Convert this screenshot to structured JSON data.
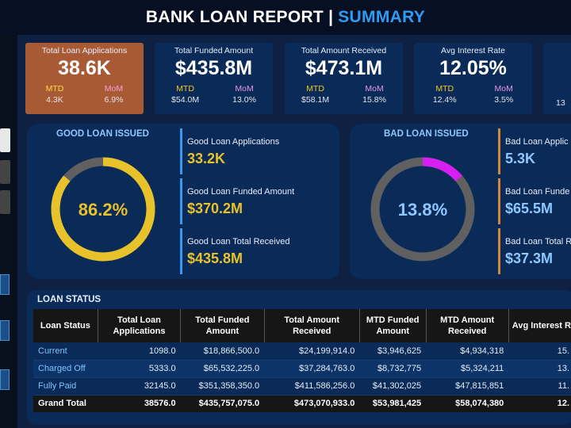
{
  "header": {
    "title_part1": "BANK LOAN REPORT",
    "separator": "|",
    "title_part2": "SUMMARY"
  },
  "kpis": [
    {
      "title": "Total Loan Applications",
      "value": "38.6K",
      "mtd_label": "MTD",
      "mtd_value": "4.3K",
      "mom_label": "MoM",
      "mom_value": "6.9%"
    },
    {
      "title": "Total Funded Amount",
      "value": "$435.8M",
      "mtd_label": "MTD",
      "mtd_value": "$54.0M",
      "mom_label": "MoM",
      "mom_value": "13.0%"
    },
    {
      "title": "Total Amount Received",
      "value": "$473.1M",
      "mtd_label": "MTD",
      "mtd_value": "$58.1M",
      "mom_label": "MoM",
      "mom_value": "15.8%"
    },
    {
      "title": "Avg Interest Rate",
      "value": "12.05%",
      "mtd_label": "MTD",
      "mtd_value": "12.4%",
      "mom_label": "MoM",
      "mom_value": "3.5%"
    },
    {
      "mtd_value": "13"
    }
  ],
  "good_loan": {
    "title": "GOOD LOAN ISSUED",
    "percent_label": "86.2%",
    "percent": 86.2,
    "applications_label": "Good Loan Applications",
    "applications_value": "33.2K",
    "funded_label": "Good Loan Funded Amount",
    "funded_value": "$370.2M",
    "received_label": "Good Loan Total Received",
    "received_value": "$435.8M"
  },
  "bad_loan": {
    "title": "BAD LOAN ISSUED",
    "percent_label": "13.8%",
    "percent": 13.8,
    "applications_label": "Bad Loan Applic",
    "applications_value": "5.3K",
    "funded_label": "Bad Loan Funde",
    "funded_value": "$65.5M",
    "received_label": "Bad Loan Total R",
    "received_value": "$37.3M"
  },
  "loan_status": {
    "title": "LOAN STATUS",
    "columns": [
      "Loan Status",
      "Total Loan Applications",
      "Total Funded Amount",
      "Total Amount Received",
      "MTD Funded Amount",
      "MTD Amount Received",
      "Avg Interest R"
    ],
    "rows": [
      [
        "Current",
        "1098.0",
        "$18,866,500.0",
        "$24,199,914.0",
        "$3,946,625",
        "$4,934,318",
        "15."
      ],
      [
        "Charged Off",
        "5333.0",
        "$65,532,225.0",
        "$37,284,763.0",
        "$8,732,775",
        "$5,324,211",
        "13."
      ],
      [
        "Fully Paid",
        "32145.0",
        "$351,358,350.0",
        "$411,586,256.0",
        "$41,302,025",
        "$47,815,851",
        "11."
      ]
    ],
    "total": [
      "Grand Total",
      "38576.0",
      "$435,757,075.0",
      "$473,070,933.0",
      "$53,981,425",
      "$58,074,380",
      "12."
    ]
  },
  "colors": {
    "accent_blue": "#2f9bf5",
    "good": "#e8c22b",
    "bad_ring": "#d61ff0",
    "bad_text": "#8ec8ff",
    "active_card": "#a85a35"
  }
}
